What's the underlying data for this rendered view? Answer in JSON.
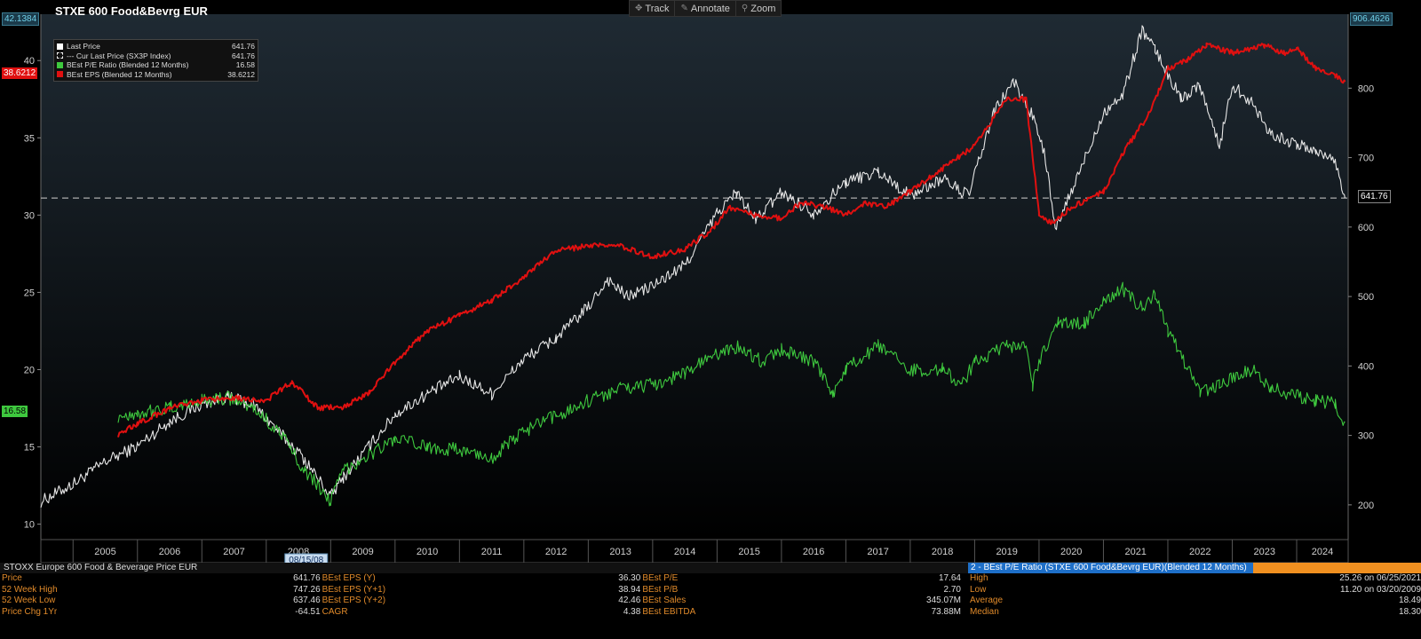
{
  "chart_title": "STXE 600 Food&Bevrg EUR",
  "toolbar": [
    {
      "icon": "crosshair-icon",
      "glyph": "✥",
      "label": "Track"
    },
    {
      "icon": "pencil-icon",
      "glyph": "✎",
      "label": "Annotate"
    },
    {
      "icon": "magnifier-icon",
      "glyph": "⚲",
      "label": "Zoom"
    }
  ],
  "legend": [
    {
      "label": "Last Price",
      "value": "641.76",
      "color": "#ffffff",
      "style": "solid"
    },
    {
      "label": "--- Cur Last Price (SX3P Index)",
      "value": "641.76",
      "color": "#ffffff",
      "style": "dashed"
    },
    {
      "label": "BEst P/E Ratio (Blended 12 Months)",
      "value": "16.58",
      "color": "#3ec83e",
      "style": "solid"
    },
    {
      "label": "BEst EPS (Blended 12 Months)",
      "value": "38.6212",
      "color": "#e01010",
      "style": "solid"
    }
  ],
  "tags": {
    "left_top": "42.1384",
    "left_eps": "38.6212",
    "left_pe": "16.58",
    "right_top": "906.4626",
    "right_last": "641.76"
  },
  "colors": {
    "price": "#e6e6e6",
    "pe": "#3ec83e",
    "eps": "#e01010",
    "bg_top": "#1f2a33",
    "bg_bottom": "#000000"
  },
  "chart_data": {
    "type": "line",
    "x_range": [
      2004.5,
      2024.8
    ],
    "y_left": {
      "range": [
        9,
        43
      ],
      "ticks": [
        10,
        15,
        20,
        25,
        30,
        35,
        40
      ]
    },
    "y_right": {
      "range": [
        150,
        906.46
      ],
      "ticks": [
        200,
        300,
        400,
        500,
        600,
        700,
        800
      ]
    },
    "x_ticks": [
      "2005",
      "2006",
      "2007",
      "2008",
      "2009",
      "2010",
      "2011",
      "2012",
      "2013",
      "2014",
      "2015",
      "2016",
      "2017",
      "2018",
      "2019",
      "2020",
      "2021",
      "2022",
      "2023",
      "2024"
    ],
    "x_cursor_label": "08/15/08",
    "reference_line": {
      "axis": "right",
      "value": 641.76,
      "label": "Cur Last Price (SX3P Index)"
    },
    "series": [
      {
        "name": "Last Price",
        "axis": "right",
        "color": "#e6e6e6",
        "x": [
          2004.5,
          2005,
          2005.5,
          2006,
          2006.5,
          2007,
          2007.4,
          2007.8,
          2008.2,
          2008.6,
          2009.0,
          2009.2,
          2009.6,
          2010.0,
          2010.5,
          2011.0,
          2011.5,
          2012.0,
          2012.5,
          2013.0,
          2013.3,
          2013.6,
          2014.0,
          2014.5,
          2015.0,
          2015.3,
          2015.6,
          2016.0,
          2016.5,
          2017.0,
          2017.5,
          2018.0,
          2018.5,
          2018.9,
          2019.3,
          2019.6,
          2019.9,
          2020.1,
          2020.25,
          2020.5,
          2021.0,
          2021.3,
          2021.6,
          2021.8,
          2022.2,
          2022.5,
          2022.8,
          2023.0,
          2023.3,
          2023.6,
          2024.0,
          2024.3,
          2024.6,
          2024.75
        ],
        "y": [
          205,
          230,
          262,
          285,
          320,
          345,
          355,
          345,
          305,
          265,
          212,
          240,
          285,
          330,
          360,
          385,
          360,
          410,
          440,
          485,
          525,
          500,
          515,
          545,
          620,
          650,
          610,
          650,
          620,
          665,
          680,
          645,
          670,
          645,
          765,
          810,
          760,
          700,
          595,
          650,
          765,
          790,
          885,
          855,
          785,
          805,
          715,
          805,
          780,
          735,
          718,
          710,
          695,
          641.76
        ]
      },
      {
        "name": "BEst P/E Ratio (Blended 12 Months)",
        "axis": "left",
        "color": "#3ec83e",
        "x": [
          2005.7,
          2006,
          2006.5,
          2007,
          2007.4,
          2007.8,
          2008.2,
          2008.6,
          2009.0,
          2009.2,
          2009.6,
          2010.0,
          2010.5,
          2011.0,
          2011.5,
          2012.0,
          2012.5,
          2013.0,
          2013.5,
          2014.0,
          2014.5,
          2015.0,
          2015.3,
          2015.7,
          2016.0,
          2016.5,
          2016.8,
          2017.0,
          2017.5,
          2018.0,
          2018.5,
          2018.8,
          2019.0,
          2019.5,
          2019.8,
          2019.9,
          2020.0,
          2020.3,
          2020.7,
          2021.0,
          2021.3,
          2021.6,
          2021.8,
          2022.0,
          2022.5,
          2022.8,
          2023.0,
          2023.3,
          2023.6,
          2024.0,
          2024.3,
          2024.6,
          2024.75
        ],
        "y": [
          17.0,
          17.2,
          17.5,
          18.0,
          18.2,
          17.5,
          16.0,
          13.5,
          11.5,
          13.5,
          14.5,
          15.5,
          15.0,
          14.8,
          14.3,
          16.0,
          17.0,
          18.0,
          18.8,
          19.0,
          19.8,
          21.0,
          21.5,
          20.5,
          21.3,
          20.5,
          18.5,
          20.0,
          21.5,
          20.0,
          20.0,
          19.0,
          20.5,
          21.5,
          21.5,
          19.0,
          20.5,
          23.0,
          23.0,
          24.5,
          25.2,
          24.0,
          24.8,
          22.5,
          18.5,
          19.0,
          19.5,
          20.0,
          18.8,
          18.3,
          18.0,
          17.8,
          16.58
        ]
      },
      {
        "name": "BEst EPS (Blended 12 Months)",
        "axis": "left",
        "color": "#e01010",
        "x": [
          2005.7,
          2006,
          2006.5,
          2007,
          2007.5,
          2008,
          2008.4,
          2008.8,
          2009.2,
          2009.6,
          2010,
          2010.5,
          2011,
          2011.5,
          2012,
          2012.5,
          2013,
          2013.5,
          2014,
          2014.5,
          2014.9,
          2015.2,
          2015.6,
          2016,
          2016.3,
          2016.7,
          2017,
          2017.3,
          2017.6,
          2018,
          2018.5,
          2019,
          2019.5,
          2019.8,
          2020.0,
          2020.2,
          2020.5,
          2021.0,
          2021.3,
          2021.7,
          2022.0,
          2022.3,
          2022.6,
          2023.0,
          2023.5,
          2023.8,
          2024.0,
          2024.3,
          2024.6,
          2024.75
        ],
        "y": [
          15.8,
          16.5,
          17.5,
          18.0,
          18.2,
          18.0,
          19.2,
          17.5,
          17.6,
          18.5,
          20.5,
          22.5,
          23.5,
          24.5,
          26.0,
          27.7,
          28.0,
          28.0,
          27.3,
          27.8,
          29.0,
          30.5,
          30.0,
          29.8,
          30.8,
          30.5,
          30.0,
          30.8,
          30.5,
          31.5,
          33.0,
          34.5,
          37.5,
          37.5,
          30.0,
          29.5,
          30.5,
          31.5,
          34.0,
          36.5,
          39.5,
          40.0,
          41.0,
          40.5,
          41.0,
          40.5,
          40.8,
          39.5,
          39.0,
          38.6212
        ]
      }
    ]
  },
  "footer": {
    "title": "STOXX Europe 600 Food & Beverage Price EUR",
    "stats_title": "2 - BEst P/E Ratio (STXE 600 Food&Bevrg EUR)(Blended 12 Months)",
    "rows": [
      {
        "l1": "Price",
        "v1": "641.76",
        "l2": "BEst EPS (Y)",
        "v2": "36.30",
        "l3": "BEst P/E",
        "v3": "17.64",
        "l4": "High",
        "v4": "25.26 on 06/25/2021"
      },
      {
        "l1": "52 Week High",
        "v1": "747.26",
        "l2": "BEst EPS (Y+1)",
        "v2": "38.94",
        "l3": "BEst P/B",
        "v3": "2.70",
        "l4": "Low",
        "v4": "11.20 on 03/20/2009"
      },
      {
        "l1": "52 Week Low",
        "v1": "637.46",
        "l2": "BEst EPS (Y+2)",
        "v2": "42.46",
        "l3": "BEst Sales",
        "v3": "345.07M",
        "l4": "Average",
        "v4": "18.49"
      },
      {
        "l1": "Price Chg 1Yr",
        "v1": "-64.51",
        "l2": "CAGR",
        "v2": "4.38",
        "l3": "BEst EBITDA",
        "v3": "73.88M",
        "l4": "Median",
        "v4": "18.30"
      }
    ]
  }
}
